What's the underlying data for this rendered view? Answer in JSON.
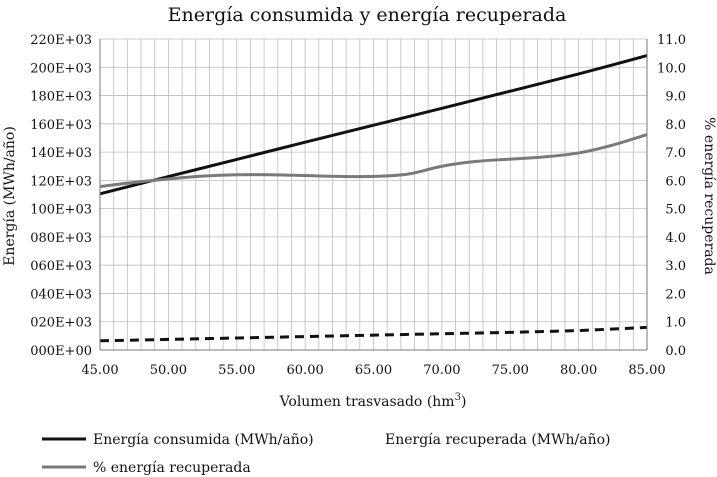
{
  "chart_data": {
    "type": "line",
    "title": "Energía consumida y energía recuperada",
    "xlabel": "Volumen trasvasado (hm",
    "xlabel_sup": "3",
    "xlabel_close": ")",
    "ylabel_left": "Energía (MWh/año)",
    "ylabel_right": "% energía recuperada",
    "xlim": [
      45,
      85
    ],
    "ylim_left": [
      0,
      220000
    ],
    "ylim_right": [
      0,
      11
    ],
    "x_ticks": [
      45,
      50,
      55,
      60,
      65,
      70,
      75,
      80,
      85
    ],
    "x_tick_labels": [
      "45.00",
      "50.00",
      "55.00",
      "60.00",
      "65.00",
      "70.00",
      "75.00",
      "80.00",
      "85.00"
    ],
    "y_left_ticks": [
      0,
      20000,
      40000,
      60000,
      80000,
      100000,
      120000,
      140000,
      160000,
      180000,
      200000,
      220000
    ],
    "y_left_tick_labels": [
      "000E+00",
      "020E+03",
      "040E+03",
      "060E+03",
      "080E+03",
      "100E+03",
      "120E+03",
      "140E+03",
      "160E+03",
      "180E+03",
      "200E+03",
      "220E+03"
    ],
    "y_right_ticks": [
      0,
      1,
      2,
      3,
      4,
      5,
      6,
      7,
      8,
      9,
      10,
      11
    ],
    "y_right_tick_labels": [
      "0.0",
      "1.0",
      "2.0",
      "3.0",
      "4.0",
      "5.0",
      "6.0",
      "7.0",
      "8.0",
      "9.0",
      "10.0",
      "11.0"
    ],
    "grid": true,
    "series": [
      {
        "name": "Energía consumida (MWh/año)",
        "axis": "left",
        "color": "#111111",
        "style": "solid",
        "x": [
          45,
          50,
          55,
          60,
          65,
          70,
          75,
          80,
          85
        ],
        "values": [
          110500,
          122700,
          134800,
          147000,
          159000,
          171000,
          183100,
          195300,
          208300
        ]
      },
      {
        "name": "Energía recuperada (MWh/año)",
        "axis": "left",
        "color": "#111111",
        "style": "dashed",
        "x": [
          45,
          50,
          55,
          60,
          65,
          70,
          75,
          80,
          85
        ],
        "values": [
          6500,
          7500,
          8500,
          9500,
          10500,
          11500,
          12500,
          13800,
          16000
        ]
      },
      {
        "name": "% energía recuperada",
        "axis": "right",
        "color": "#7a7a7a",
        "style": "solid",
        "x": [
          45,
          47.5,
          50,
          52.5,
          55,
          57.5,
          60,
          62.5,
          65,
          67.5,
          70,
          72.5,
          75,
          77.5,
          80,
          82.5,
          85
        ],
        "values": [
          5.78,
          5.93,
          6.05,
          6.15,
          6.2,
          6.2,
          6.17,
          6.14,
          6.14,
          6.22,
          6.5,
          6.67,
          6.75,
          6.83,
          6.97,
          7.25,
          7.62
        ]
      }
    ],
    "legend": [
      "Energía consumida (MWh/año)",
      "Energía recuperada (MWh/año)",
      "% energía recuperada"
    ],
    "legend_position": "bottom"
  }
}
